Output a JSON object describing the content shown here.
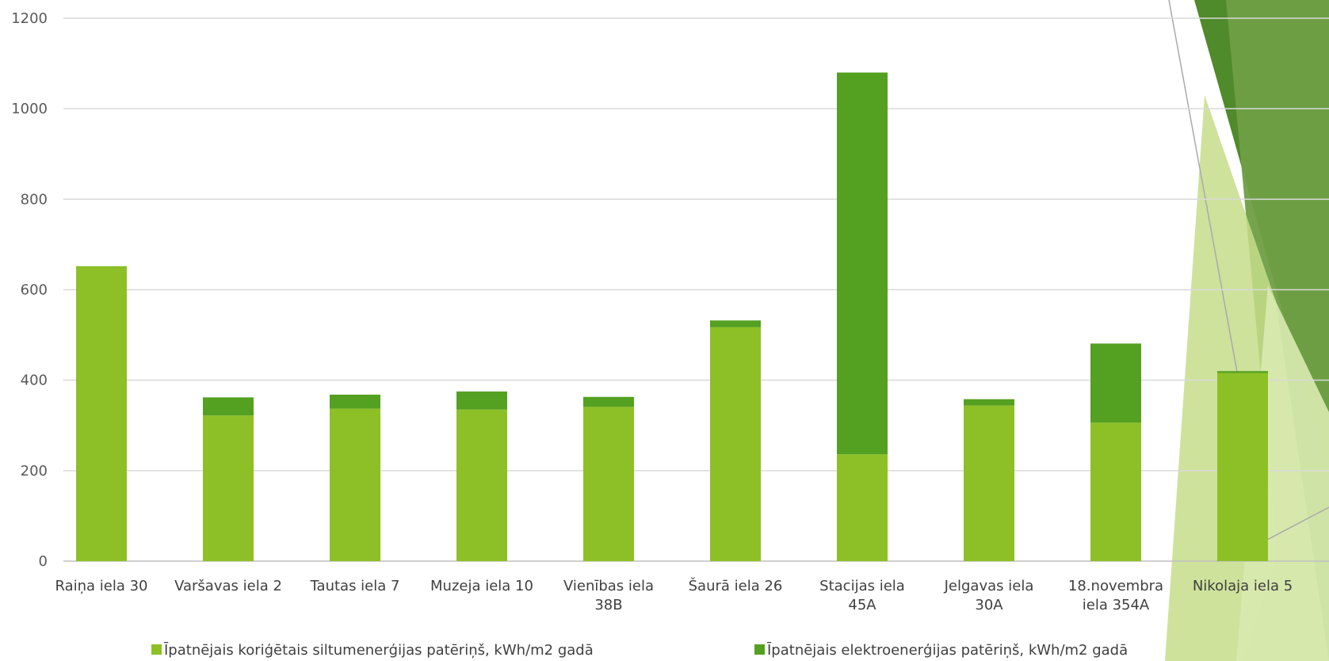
{
  "chart_data": {
    "type": "bar",
    "stacked": true,
    "categories": [
      [
        "Raiņa iela 30"
      ],
      [
        "Varšavas iela 2"
      ],
      [
        "Tautas iela 7"
      ],
      [
        "Muzeja iela 10"
      ],
      [
        "Vienības iela",
        "38B"
      ],
      [
        "Šaurā iela 26"
      ],
      [
        "Stacijas iela",
        "45A"
      ],
      [
        "Jelgavas iela",
        "30A"
      ],
      [
        "18.novembra",
        "iela 354A"
      ],
      [
        "Nikolaja iela 5"
      ]
    ],
    "series": [
      {
        "name": "Īpatnējais koriģētais siltumenerģijas patēriņš, kWh/m2 gadā",
        "color": "#8dc026",
        "values": [
          652,
          322,
          337,
          335,
          341,
          517,
          236,
          344,
          306,
          416
        ]
      },
      {
        "name": "Īpatnējais elektroenerģijas patēriņš, kWh/m2 gadā",
        "color": "#54a021",
        "values": [
          0,
          40,
          31,
          40,
          22,
          15,
          844,
          14,
          175,
          4
        ]
      }
    ],
    "ylim": [
      0,
      1200
    ],
    "yticks": [
      0,
      200,
      400,
      600,
      800,
      1000,
      1200
    ],
    "grid": true,
    "legend_position": "bottom"
  }
}
